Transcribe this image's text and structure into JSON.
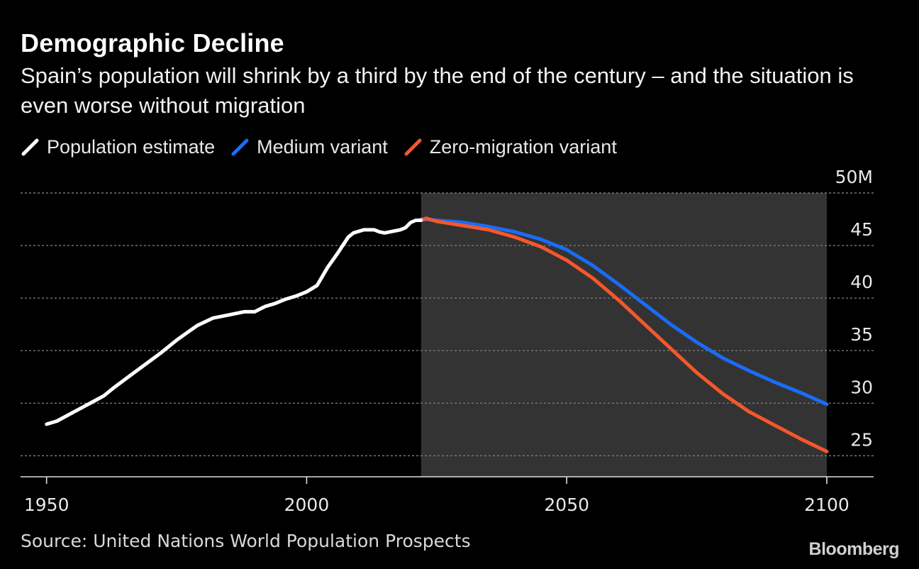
{
  "title": "Demographic Decline",
  "subtitle": "Spain’s population will shrink by a third by the end of the century – and the situation is even worse without migration",
  "source": "Source: United Nations World Population Prospects",
  "brand": "Bloomberg",
  "colors": {
    "background": "#000000",
    "estimate": "#ffffff",
    "medium": "#1a6cf5",
    "zero_migration": "#f4572c",
    "projection_band": "#333333",
    "grid": "#777777"
  },
  "chart_data": {
    "type": "line",
    "xlim": [
      1945,
      2109
    ],
    "ylim": [
      23,
      50
    ],
    "x_ticks": [
      1950,
      2000,
      2050,
      2100
    ],
    "x_tick_labels": [
      "1950",
      "2000",
      "2050",
      "2100"
    ],
    "y_ticks": [
      25,
      30,
      35,
      40,
      45,
      50
    ],
    "y_tick_labels": [
      "25",
      "30",
      "35",
      "40",
      "45",
      "50M"
    ],
    "grid": "horizontal dotted",
    "legend_position": "top-left",
    "projection_band": [
      2022,
      2100
    ],
    "series": [
      {
        "name": "Population estimate",
        "color": "#ffffff",
        "x": [
          1950,
          1952,
          1955,
          1958,
          1961,
          1963,
          1966,
          1969,
          1972,
          1975,
          1977,
          1979,
          1982,
          1985,
          1988,
          1990,
          1992,
          1994,
          1996,
          1998,
          2000,
          2002,
          2004,
          2006,
          2008,
          2009,
          2011,
          2013,
          2014,
          2015,
          2016,
          2018,
          2019,
          2020,
          2021,
          2022
        ],
        "y": [
          28.0,
          28.3,
          29.1,
          29.9,
          30.7,
          31.5,
          32.6,
          33.7,
          34.8,
          36.0,
          36.7,
          37.4,
          38.1,
          38.4,
          38.7,
          38.7,
          39.2,
          39.5,
          39.9,
          40.2,
          40.6,
          41.2,
          42.9,
          44.3,
          45.8,
          46.2,
          46.5,
          46.5,
          46.3,
          46.2,
          46.3,
          46.5,
          46.7,
          47.2,
          47.4,
          47.4
        ]
      },
      {
        "name": "Medium variant",
        "color": "#1a6cf5",
        "x": [
          2022,
          2025,
          2030,
          2035,
          2040,
          2045,
          2050,
          2055,
          2060,
          2065,
          2070,
          2075,
          2080,
          2085,
          2090,
          2095,
          2100
        ],
        "y": [
          47.5,
          47.4,
          47.2,
          46.8,
          46.3,
          45.6,
          44.6,
          43.1,
          41.3,
          39.4,
          37.5,
          35.8,
          34.3,
          33.1,
          32.0,
          31.0,
          29.9
        ]
      },
      {
        "name": "Zero-migration variant",
        "color": "#f4572c",
        "x": [
          2022,
          2023,
          2025,
          2030,
          2035,
          2040,
          2045,
          2050,
          2055,
          2060,
          2065,
          2070,
          2075,
          2080,
          2085,
          2090,
          2095,
          2100
        ],
        "y": [
          47.4,
          47.6,
          47.3,
          46.9,
          46.5,
          45.8,
          44.9,
          43.6,
          41.9,
          39.8,
          37.5,
          35.2,
          32.9,
          30.9,
          29.2,
          27.9,
          26.6,
          25.4
        ]
      }
    ]
  }
}
